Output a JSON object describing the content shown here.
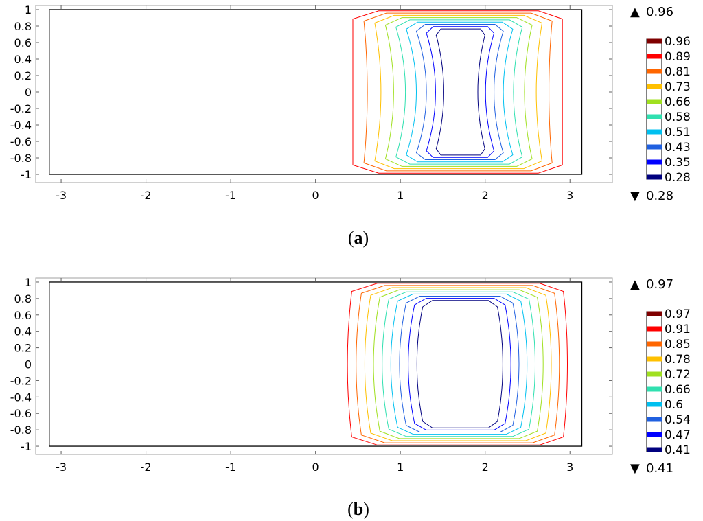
{
  "chart_data": [
    {
      "type": "contour",
      "panel_label": "a",
      "xlim": [
        -3.3,
        3.5
      ],
      "ylim": [
        -1.1,
        1.05
      ],
      "x_ticks": [
        -3,
        -2,
        -1,
        0,
        1,
        2,
        3
      ],
      "y_ticks": [
        1,
        0.8,
        0.6,
        0.4,
        0.2,
        0,
        -0.2,
        -0.4,
        -0.6,
        -0.8,
        -1
      ],
      "x_tick_labels": [
        "-3",
        "-2",
        "-1",
        "0",
        "1",
        "2",
        "3"
      ],
      "y_tick_labels": [
        "1",
        "0.8",
        "0.6",
        "0.4",
        "0.2",
        "0",
        "-0.2",
        "-0.4",
        "-0.6",
        "-0.8",
        "-1"
      ],
      "domain": {
        "x": [
          -3.14,
          3.14
        ],
        "y": [
          -1,
          1
        ]
      },
      "levels": [
        0.96,
        0.89,
        0.81,
        0.73,
        0.66,
        0.58,
        0.51,
        0.43,
        0.35,
        0.28
      ],
      "level_labels": [
        "0.96",
        "0.89",
        "0.81",
        "0.73",
        "0.66",
        "0.58",
        "0.51",
        "0.43",
        "0.35",
        "0.28"
      ],
      "level_colors": [
        "#7f0000",
        "#ff0000",
        "#ff6600",
        "#ffc000",
        "#a0e020",
        "#30e0b0",
        "#00c0f0",
        "#2060e0",
        "#0000ff",
        "#00007f"
      ],
      "max_label": "0.96",
      "min_label": "0.28",
      "max_marker": "▲",
      "min_marker": "▼",
      "shape": "pinched",
      "center_x": 1.72,
      "outer_half_width": 1.28,
      "inner_half_width": 0.32,
      "outer_half_height": 0.99,
      "inner_half_height": 0.77
    },
    {
      "type": "contour",
      "panel_label": "b",
      "xlim": [
        -3.3,
        3.5
      ],
      "ylim": [
        -1.1,
        1.05
      ],
      "x_ticks": [
        -3,
        -2,
        -1,
        0,
        1,
        2,
        3
      ],
      "y_ticks": [
        1,
        0.8,
        0.6,
        0.4,
        0.2,
        0,
        -0.2,
        -0.4,
        -0.6,
        -0.8,
        -1
      ],
      "x_tick_labels": [
        "-3",
        "-2",
        "-1",
        "0",
        "1",
        "2",
        "3"
      ],
      "y_tick_labels": [
        "1",
        "0.8",
        "0.6",
        "0.4",
        "0.2",
        "0",
        "-0.2",
        "-0.4",
        "-0.6",
        "-0.8",
        "-1"
      ],
      "domain": {
        "x": [
          -3.14,
          3.14
        ],
        "y": [
          -1,
          1
        ]
      },
      "levels": [
        0.97,
        0.91,
        0.85,
        0.78,
        0.72,
        0.66,
        0.6,
        0.54,
        0.47,
        0.41
      ],
      "level_labels": [
        "0.97",
        "0.91",
        "0.85",
        "0.78",
        "0.72",
        "0.66",
        "0.6",
        "0.54",
        "0.47",
        "0.41"
      ],
      "level_colors": [
        "#7f0000",
        "#ff0000",
        "#ff6600",
        "#ffc000",
        "#a0e020",
        "#30e0b0",
        "#00c0f0",
        "#2060e0",
        "#0000ff",
        "#00007f"
      ],
      "max_label": "0.97",
      "min_label": "0.41",
      "max_marker": "▲",
      "min_marker": "▼",
      "shape": "barrel",
      "center_x": 1.72,
      "outer_half_width": 1.28,
      "inner_half_width": 0.5,
      "outer_half_height": 0.99,
      "inner_half_height": 0.78
    }
  ]
}
